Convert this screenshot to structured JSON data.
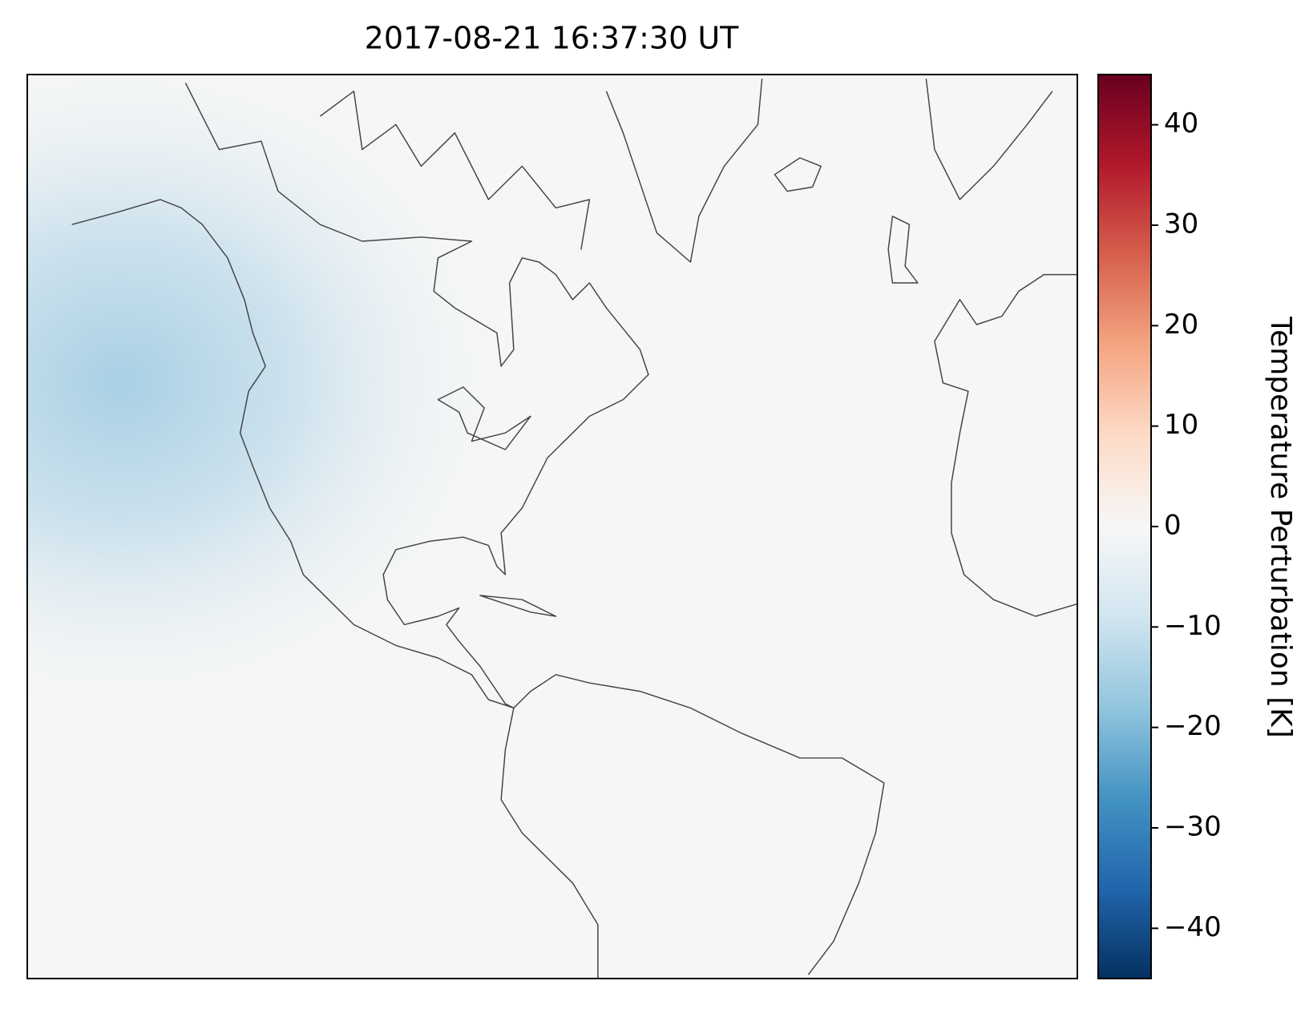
{
  "chart_data": {
    "type": "map",
    "title": "2017-08-21 16:37:30 UT",
    "colorbar": {
      "label": "Temperature Perturbation [K]",
      "lim": [
        -45,
        45
      ],
      "ticks": [
        {
          "value": -40,
          "label": "−40"
        },
        {
          "value": -30,
          "label": "−30"
        },
        {
          "value": -20,
          "label": "−20"
        },
        {
          "value": -10,
          "label": "−10"
        },
        0,
        10,
        20,
        30,
        40
      ],
      "colors": [
        "#053061",
        "#2166ac",
        "#4393c3",
        "#92c5de",
        "#d1e5f0",
        "#f7f7f7",
        "#fddbc7",
        "#f4a582",
        "#d6604d",
        "#b2182b",
        "#67001f"
      ]
    }
  }
}
